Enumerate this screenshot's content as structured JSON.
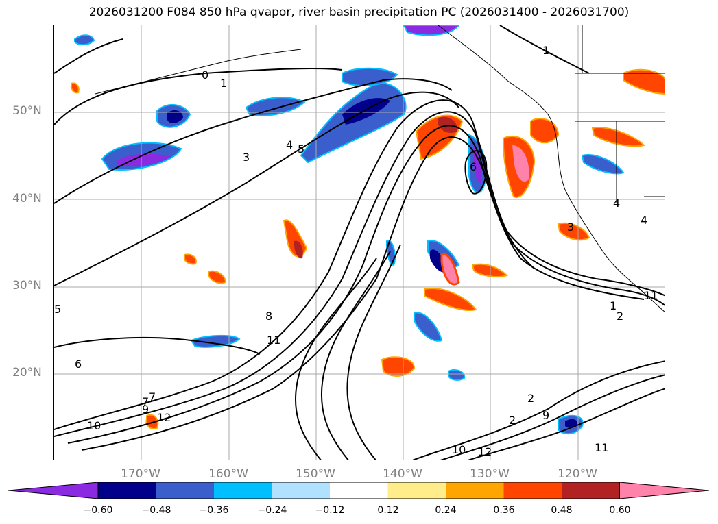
{
  "title": "2026031200 F084 850 hPa qvapor, river basin precipitation PC (2026031400 - 2026031700)",
  "lat_labels": [
    "50°N",
    "40°N",
    "30°N",
    "20°N"
  ],
  "lon_labels": [
    "170°W",
    "160°W",
    "150°W",
    "140°W",
    "130°W",
    "120°W"
  ],
  "colorbar": {
    "ticks": [
      "−0.60",
      "−0.48",
      "−0.36",
      "−0.24",
      "−0.12",
      "0.12",
      "0.24",
      "0.36",
      "0.48",
      "0.60"
    ],
    "colors": [
      "#8a2be2",
      "#00008b",
      "#3a5fcd",
      "#00bfff",
      "#b0e2ff",
      "#ffffff",
      "#ffec8b",
      "#ffa500",
      "#ff4500",
      "#b22222",
      "#ff82ab"
    ]
  },
  "contour_labels": [
    "0",
    "1",
    "3",
    "4",
    "5",
    "6",
    "8",
    "11",
    "12",
    "10",
    "7",
    "9",
    "2",
    "1",
    "2",
    "4",
    "11",
    "10",
    "12",
    "9",
    "2",
    "3",
    "4",
    "5",
    "6",
    "1",
    "11",
    "7"
  ]
}
